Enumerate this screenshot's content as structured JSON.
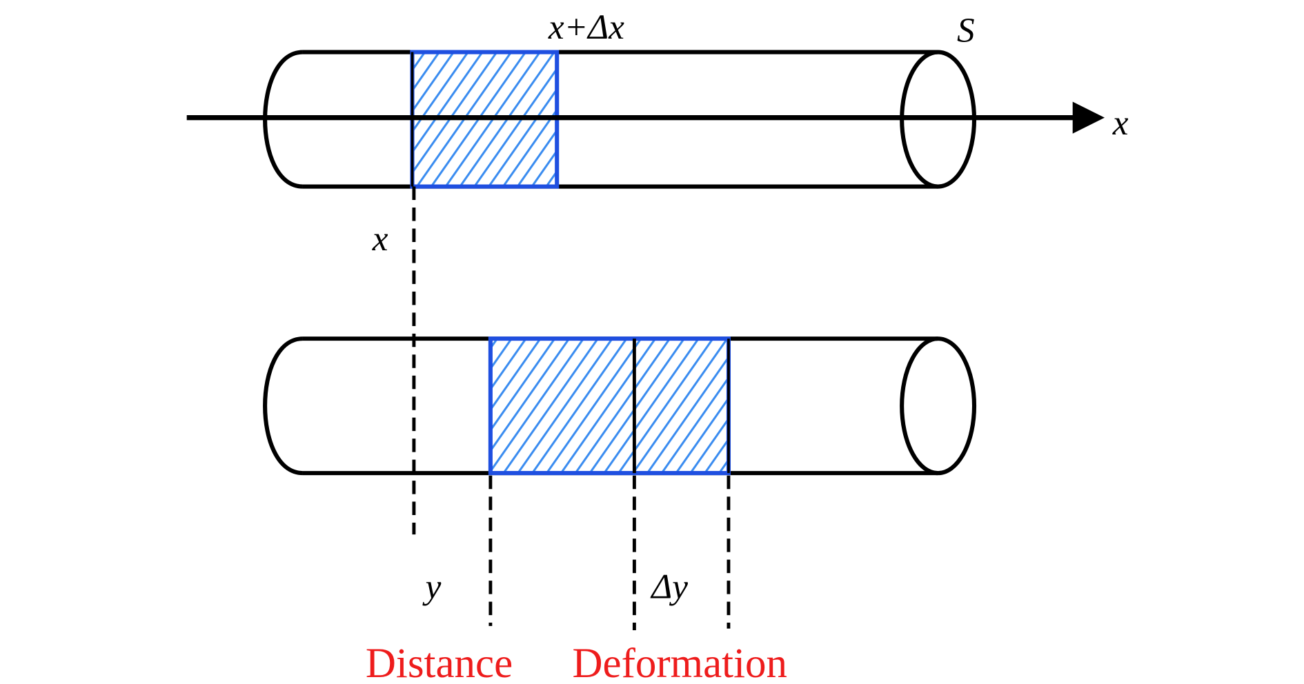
{
  "colors": {
    "outline": "#000000",
    "segment": "#1f4fe0",
    "hatch": "#3a8cf0",
    "caption": "#ee1c1c"
  },
  "labels": {
    "top_segment_end": "x+Δx",
    "cross_section": "S",
    "axis": "x",
    "position_x": "x",
    "position_y": "y",
    "delta_y": "Δy",
    "distance": "Distance",
    "deformation": "Deformation"
  }
}
